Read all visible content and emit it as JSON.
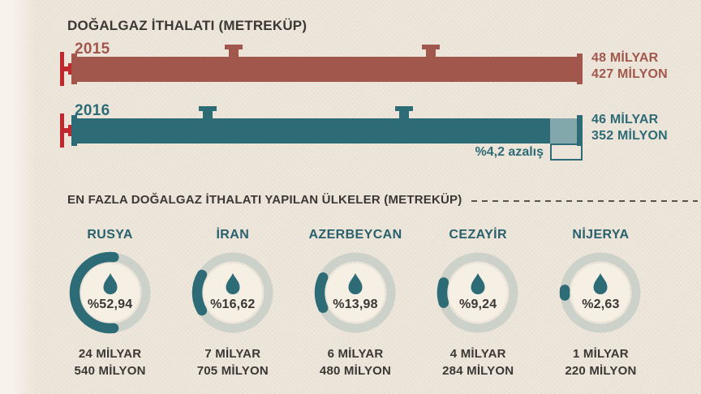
{
  "header": {
    "title": "DOĞALGAZ İTHALATI (METREKÜP)"
  },
  "bars": [
    {
      "year": "2015",
      "line1": "48 MİLYAR",
      "line2": "427 MİLYON"
    },
    {
      "year": "2016",
      "line1": "46 MİLYAR",
      "line2": "352 MİLYON",
      "decrease_label": "%4,2 azalış"
    }
  ],
  "section": {
    "title": "EN FAZLA DOĞALGAZ İTHALATI YAPILAN ÜLKELER (METREKÜP)"
  },
  "countries": [
    {
      "name": "RUSYA",
      "pct_label": "%52,94",
      "pct_value": 52.94,
      "line1": "24 MİLYAR",
      "line2": "540 MİLYON"
    },
    {
      "name": "İRAN",
      "pct_label": "%16,62",
      "pct_value": 16.62,
      "line1": "7 MİLYAR",
      "line2": "705 MİLYON"
    },
    {
      "name": "AZERBEYCAN",
      "pct_label": "%13,98",
      "pct_value": 13.98,
      "line1": "6 MİLYAR",
      "line2": "480 MİLYON"
    },
    {
      "name": "CEZAYİR",
      "pct_label": "%9,24",
      "pct_value": 9.24,
      "line1": "4 MİLYAR",
      "line2": "284 MİLYON"
    },
    {
      "name": "NİJERYA",
      "pct_label": "%2,63",
      "pct_value": 2.63,
      "line1": "1 MİLYAR",
      "line2": "220 MİLYON"
    }
  ],
  "icons": {
    "valve": "red-pipe-valve",
    "fitting": "pipe-top-fitting",
    "flame": "gas-flame"
  },
  "colors": {
    "background": "#ece4d8",
    "bar_2015": "#a2574d",
    "bar_2016": "#2d6b76",
    "bar_2016_light_segment": "#82a8ac",
    "valve_red": "#c1282e",
    "dark_text": "#3a3835",
    "donut_track": "#ccd2ca",
    "donut_inner": "#f5efe4",
    "country_label": "#28616b"
  },
  "chart_data": [
    {
      "type": "bar",
      "title": "DOĞALGAZ İTHALATI (METREKÜP)",
      "orientation": "horizontal",
      "categories": [
        "2015",
        "2016"
      ],
      "values_billion_m3": [
        48.427,
        46.352
      ],
      "value_labels": [
        "48 MİLYAR 427 MİLYON",
        "46 MİLYAR 352 MİLYON"
      ],
      "annotation": "%4,2 azalış",
      "colors": [
        "#a2574d",
        "#2d6b76"
      ]
    },
    {
      "type": "pie",
      "title": "EN FAZLA DOĞALGAZ İTHALATI YAPILAN ÜLKELER (METREKÜP)",
      "categories": [
        "RUSYA",
        "İRAN",
        "AZERBEYCAN",
        "CEZAYİR",
        "NİJERYA"
      ],
      "values_percent": [
        52.94,
        16.62,
        13.98,
        9.24,
        2.63
      ],
      "value_labels": [
        "24 MİLYAR 540 MİLYON",
        "7 MİLYAR 705 MİLYON",
        "6 MİLYAR 480 MİLYON",
        "4 MİLYAR 284 MİLYON",
        "1 MİLYAR 220 MİLYON"
      ],
      "style": "donut-per-category",
      "arc_color": "#2d6b76"
    }
  ]
}
